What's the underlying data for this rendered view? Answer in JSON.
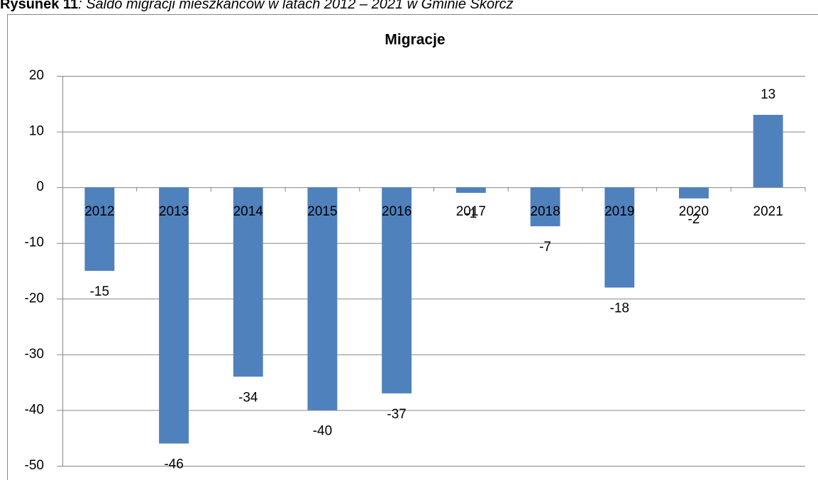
{
  "caption": {
    "label": "Rysunek 11",
    "text": ": Saldo migracji mieszkańców w latach 2012 – 2021 w Gminie Skórcz"
  },
  "chart_data": {
    "type": "bar",
    "title": "Migracje",
    "categories": [
      "2012",
      "2013",
      "2014",
      "2015",
      "2016",
      "2017",
      "2018",
      "2019",
      "2020",
      "2021"
    ],
    "values": [
      -15,
      -46,
      -34,
      -40,
      -37,
      -1,
      -7,
      -18,
      -2,
      13
    ],
    "color": "#4f81bd",
    "ylim": [
      -50,
      20
    ],
    "yticks": [
      -50,
      -40,
      -30,
      -20,
      -10,
      0,
      10,
      20
    ],
    "grid": true
  }
}
